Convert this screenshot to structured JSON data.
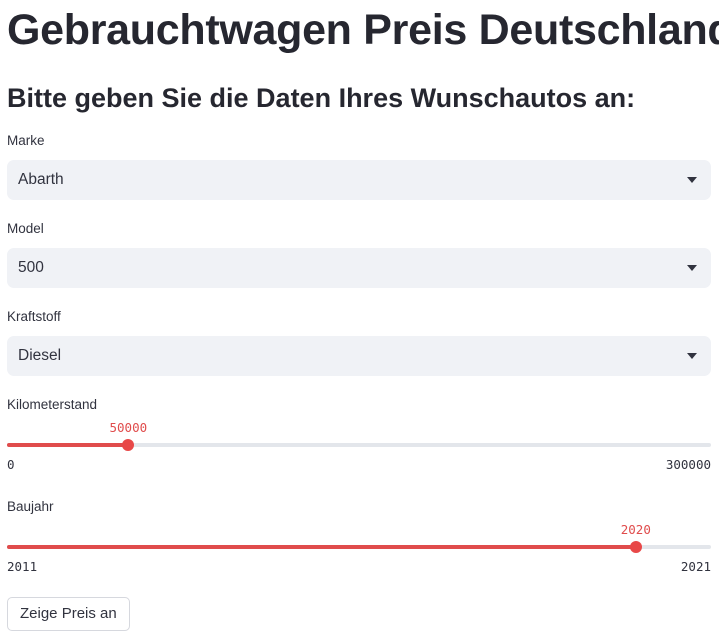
{
  "app": {
    "title": "Gebrauchtwagen Preis Deutschland",
    "subtitle": "Bitte geben Sie die Daten Ihres Wunschautos an:"
  },
  "form": {
    "marke": {
      "label": "Marke",
      "value": "Abarth"
    },
    "model": {
      "label": "Model",
      "value": "500"
    },
    "kraftstoff": {
      "label": "Kraftstoff",
      "value": "Diesel"
    },
    "kilometerstand": {
      "label": "Kilometerstand",
      "value": "50000",
      "min": "0",
      "max": "300000"
    },
    "baujahr": {
      "label": "Baujahr",
      "value": "2020",
      "min": "2011",
      "max": "2021"
    },
    "submit_label": "Zeige Preis an"
  },
  "colors": {
    "accent": "#e04c4c",
    "select_bg": "#f0f2f6",
    "track": "#e3e6eb",
    "text": "#31333f"
  },
  "icons": {
    "select_chevron": "chevron-down-icon"
  }
}
